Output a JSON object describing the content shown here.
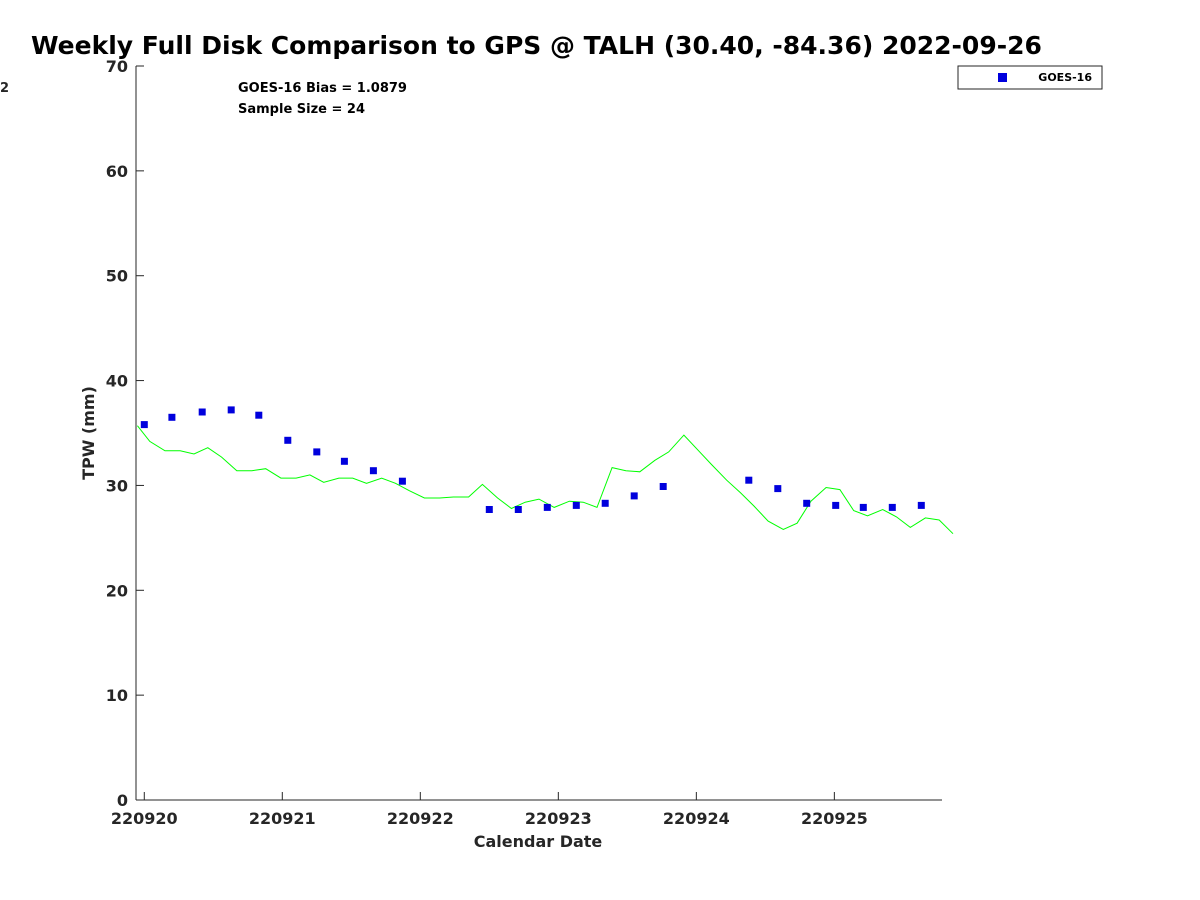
{
  "chart_data": {
    "type": "scatter",
    "title": "Weekly Full Disk Comparison to GPS @ TALH (30.40, -84.36) 2022-09-26",
    "xlabel": "Calendar Date",
    "ylabel": "TPW (mm)",
    "xlim": [
      -0.06,
      5.78
    ],
    "ylim": [
      0,
      70
    ],
    "x_ticks": [
      0,
      1,
      2,
      3,
      4,
      5
    ],
    "x_tick_labels": [
      "220920",
      "220921",
      "220922",
      "220923",
      "220924",
      "220925"
    ],
    "y_ticks": [
      0,
      10,
      20,
      30,
      40,
      50,
      60,
      70
    ],
    "y_tick_labels": [
      "0",
      "10",
      "20",
      "30",
      "40",
      "50",
      "60",
      "70"
    ],
    "left_edge_fragment": "2",
    "annotations": [
      "GOES-16 Bias = 1.0879",
      "Sample Size = 24"
    ],
    "legend": {
      "position": "top-right",
      "entries": [
        "GOES-16"
      ]
    },
    "series": [
      {
        "name": "GOES-16",
        "kind": "markers",
        "color": "#0000dd",
        "points": [
          [
            0.0,
            35.8
          ],
          [
            0.2,
            36.5
          ],
          [
            0.42,
            37.0
          ],
          [
            0.63,
            37.2
          ],
          [
            0.83,
            36.7
          ],
          [
            1.04,
            34.3
          ],
          [
            1.25,
            33.2
          ],
          [
            1.45,
            32.3
          ],
          [
            1.66,
            31.4
          ],
          [
            1.87,
            30.4
          ],
          [
            2.5,
            27.7
          ],
          [
            2.71,
            27.7
          ],
          [
            2.92,
            27.9
          ],
          [
            3.13,
            28.1
          ],
          [
            3.34,
            28.3
          ],
          [
            3.55,
            29.0
          ],
          [
            3.76,
            29.9
          ],
          [
            4.38,
            30.5
          ],
          [
            4.59,
            29.7
          ],
          [
            4.8,
            28.3
          ],
          [
            5.01,
            28.1
          ],
          [
            5.21,
            27.9
          ],
          [
            5.42,
            27.9
          ],
          [
            5.63,
            28.1
          ]
        ]
      },
      {
        "name": "GPS",
        "kind": "line",
        "color": "#00ff00",
        "points": [
          [
            -0.05,
            35.7
          ],
          [
            0.04,
            34.2
          ],
          [
            0.15,
            33.3
          ],
          [
            0.26,
            33.3
          ],
          [
            0.36,
            33.0
          ],
          [
            0.46,
            33.6
          ],
          [
            0.56,
            32.7
          ],
          [
            0.67,
            31.4
          ],
          [
            0.78,
            31.4
          ],
          [
            0.88,
            31.6
          ],
          [
            0.99,
            30.7
          ],
          [
            1.1,
            30.7
          ],
          [
            1.2,
            31.0
          ],
          [
            1.3,
            30.3
          ],
          [
            1.41,
            30.7
          ],
          [
            1.51,
            30.7
          ],
          [
            1.61,
            30.2
          ],
          [
            1.72,
            30.7
          ],
          [
            1.82,
            30.2
          ],
          [
            1.92,
            29.5
          ],
          [
            2.03,
            28.8
          ],
          [
            2.14,
            28.8
          ],
          [
            2.24,
            28.9
          ],
          [
            2.35,
            28.9
          ],
          [
            2.45,
            30.1
          ],
          [
            2.56,
            28.8
          ],
          [
            2.66,
            27.8
          ],
          [
            2.76,
            28.4
          ],
          [
            2.86,
            28.7
          ],
          [
            2.97,
            27.9
          ],
          [
            3.08,
            28.5
          ],
          [
            3.18,
            28.4
          ],
          [
            3.28,
            27.9
          ],
          [
            3.39,
            31.7
          ],
          [
            3.49,
            31.4
          ],
          [
            3.59,
            31.3
          ],
          [
            3.7,
            32.4
          ],
          [
            3.8,
            33.2
          ],
          [
            3.91,
            34.8
          ],
          [
            4.01,
            33.4
          ],
          [
            4.11,
            32.0
          ],
          [
            4.22,
            30.5
          ],
          [
            4.32,
            29.3
          ],
          [
            4.42,
            28.0
          ],
          [
            4.52,
            26.6
          ],
          [
            4.63,
            25.8
          ],
          [
            4.73,
            26.4
          ],
          [
            4.83,
            28.5
          ],
          [
            4.94,
            29.8
          ],
          [
            5.04,
            29.6
          ],
          [
            5.14,
            27.6
          ],
          [
            5.24,
            27.1
          ],
          [
            5.35,
            27.7
          ],
          [
            5.45,
            27.0
          ],
          [
            5.55,
            26.0
          ],
          [
            5.66,
            26.9
          ],
          [
            5.76,
            26.7
          ],
          [
            5.86,
            25.4
          ]
        ]
      }
    ]
  }
}
